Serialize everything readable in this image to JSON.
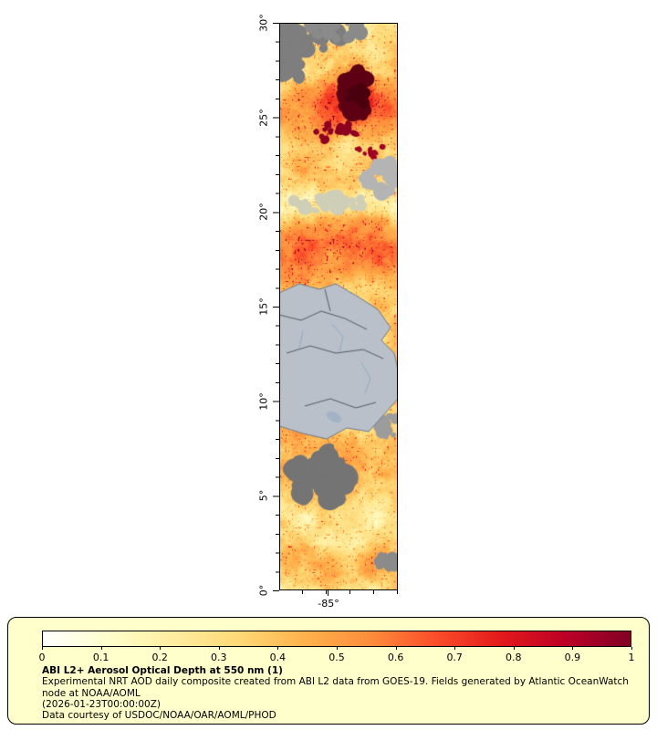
{
  "map": {
    "lat_ticks": [
      "30°",
      "25°",
      "20°",
      "15°",
      "10°",
      "5°",
      "0°"
    ],
    "lon_tick_label": "-85°",
    "no_data_color": "#7e7e7e",
    "land_mask_color": "#b9c0ca"
  },
  "legend": {
    "box_background": "#ffffcc",
    "colorbar_ticks": [
      "0",
      "0.1",
      "0.2",
      "0.3",
      "0.4",
      "0.5",
      "0.6",
      "0.7",
      "0.8",
      "0.9",
      "1"
    ],
    "colorbar_min": 0,
    "colorbar_max": 1,
    "colormap_colors": [
      "#ffffff",
      "#ffffcc",
      "#ffeda0",
      "#fed976",
      "#feb24c",
      "#fd8d3c",
      "#fc4e2a",
      "#e31a1c",
      "#bd0026",
      "#800026"
    ],
    "title": "ABI L2+ Aerosol Optical Depth at 550 nm (1)",
    "description": "Experimental NRT AOD daily composite created from ABI L2 data from GOES-19. Fields generated by Atlantic OceanWatch node at NOAA/AOML",
    "timestamp": "(2026-01-23T00:00:00Z)",
    "credit": "Data courtesy of USDOC/NOAA/OAR/AOML/PHOD"
  }
}
